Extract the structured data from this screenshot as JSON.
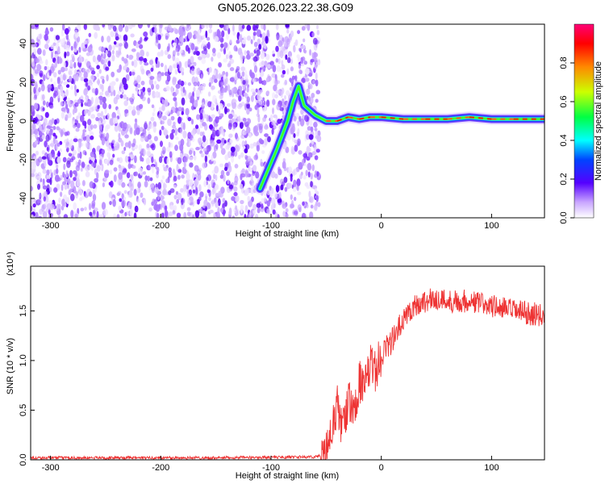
{
  "title": "GN05.2026.023.22.38.G09",
  "chart_data": [
    {
      "type": "heatmap",
      "title": "GN05.2026.023.22.38.G09",
      "xlabel": "Height of straight line (km)",
      "ylabel": "Frequency (Hz)",
      "xlim": [
        -318,
        148
      ],
      "ylim": [
        -50,
        50
      ],
      "xticks": [
        -300,
        -200,
        -100,
        0,
        100
      ],
      "yticks": [
        -40,
        -20,
        0,
        20,
        40
      ],
      "noise_region_x": [
        -318,
        -62
      ],
      "signal_track": {
        "x": [
          -110,
          -95,
          -85,
          -80,
          -75,
          -70,
          -60,
          -50,
          -40,
          -30,
          -20,
          -10,
          0,
          20,
          40,
          60,
          80,
          100,
          120,
          148
        ],
        "y": [
          -35,
          -15,
          0,
          10,
          18,
          8,
          3,
          0,
          0,
          2,
          1,
          2,
          2,
          1,
          1,
          1,
          2,
          1,
          1,
          1
        ]
      },
      "colorbar": {
        "label": "Normalized spectral amplitude",
        "range": [
          0.0,
          1.0
        ],
        "ticks": [
          0.0,
          0.2,
          0.4,
          0.6,
          0.8
        ]
      }
    },
    {
      "type": "line",
      "xlabel": "Height of straight line (km)",
      "ylabel": "SNR (10 * v/v)",
      "yscale_label": "(x10⁴)",
      "xlim": [
        -318,
        148
      ],
      "ylim": [
        0.0,
        1.95
      ],
      "xticks": [
        -300,
        -200,
        -100,
        0,
        100
      ],
      "yticks": [
        0.0,
        0.5,
        1.0,
        1.5
      ],
      "ytick_labels": [
        "0.0",
        "0.5",
        "1.0",
        "1.5"
      ],
      "color": "#ee3333",
      "series": [
        {
          "x": [
            -318,
            -250,
            -150,
            -60,
            -50,
            -45,
            -40,
            -35,
            -30,
            -25,
            -20,
            -15,
            -10,
            -5,
            0,
            5,
            10,
            15,
            20,
            25,
            30,
            40,
            50,
            60,
            80,
            100,
            120,
            148
          ],
          "values": [
            0.02,
            0.02,
            0.02,
            0.03,
            0.05,
            0.3,
            0.55,
            0.3,
            0.6,
            0.45,
            0.8,
            0.7,
            0.95,
            0.9,
            1.05,
            1.15,
            1.2,
            1.3,
            1.4,
            1.5,
            1.55,
            1.6,
            1.62,
            1.6,
            1.6,
            1.55,
            1.5,
            1.45
          ]
        }
      ]
    }
  ]
}
